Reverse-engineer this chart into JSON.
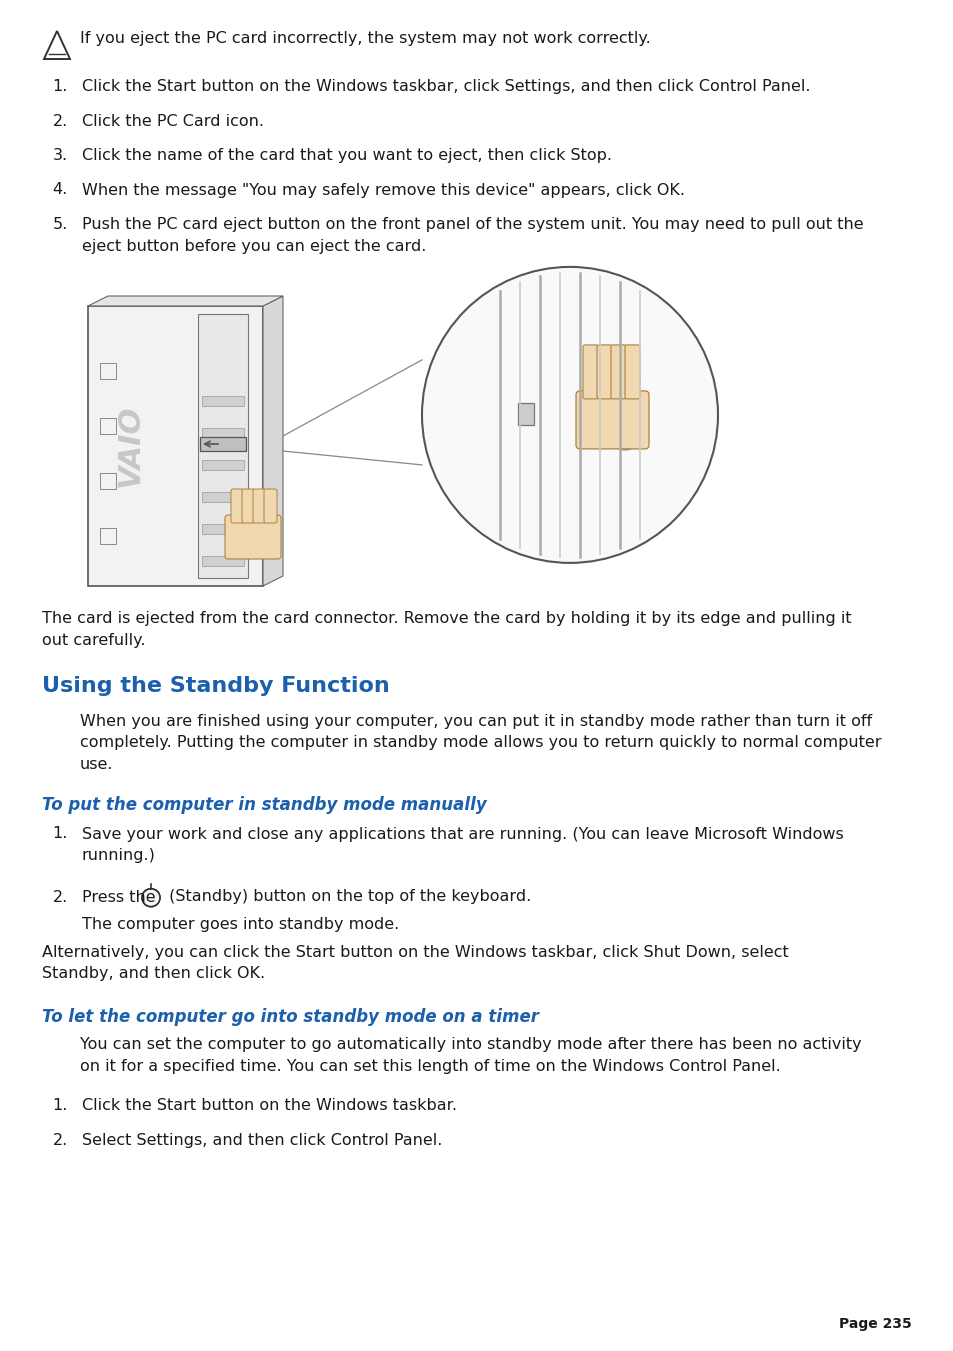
{
  "bg_color": "#ffffff",
  "text_color": "#1a1a1a",
  "heading_color": "#1b5fad",
  "subheading_color": "#1b5fad",
  "page_number": "Page 235",
  "note_text": "If you eject the PC card incorrectly, the system may not work correctly.",
  "items": [
    {
      "num": "1.",
      "text": "Click the Start button on the Windows taskbar, click Settings, and then click Control Panel."
    },
    {
      "num": "2.",
      "text": "Click the PC Card icon."
    },
    {
      "num": "3.",
      "text": "Click the name of the card that you want to eject, then click Stop."
    },
    {
      "num": "4.",
      "text": "When the message \"You may safely remove this device\" appears, click OK."
    },
    {
      "num": "5.",
      "text": "Push the PC card eject button on the front panel of the system unit. You may need to pull out the",
      "text2": "eject button before you can eject the card."
    }
  ],
  "caption_text1": "The card is ejected from the card connector. Remove the card by holding it by its edge and pulling it",
  "caption_text2": "out carefully.",
  "heading1": "Using the Standby Function",
  "para1_lines": [
    "When you are finished using your computer, you can put it in standby mode rather than turn it off",
    "completely. Putting the computer in standby mode allows you to return quickly to normal computer",
    "use."
  ],
  "subheading1": "To put the computer in standby mode manually",
  "standby_item1_line1": "Save your work and close any applications that are running. (You can leave Microsoft Windows",
  "standby_item1_line2": "running.)",
  "standby_item2_pre": "Press the ",
  "standby_item2_post": " (Standby) button on the top of the keyboard.",
  "standby_note1": "The computer goes into standby mode.",
  "standby_note2_line1": "Alternatively, you can click the Start button on the Windows taskbar, click Shut Down, select",
  "standby_note2_line2": "Standby, and then click OK.",
  "subheading2": "To let the computer go into standby mode on a timer",
  "timer_para_line1": "You can set the computer to go automatically into standby mode after there has been no activity",
  "timer_para_line2": "on it for a specified time. You can set this length of time on the Windows Control Panel.",
  "timer_item1": "Click the Start button on the Windows taskbar.",
  "timer_item2": "Select Settings, and then click Control Panel.",
  "font_body": 11.5,
  "font_heading": 16,
  "font_sub": 12,
  "lm": 42,
  "ind": 80
}
